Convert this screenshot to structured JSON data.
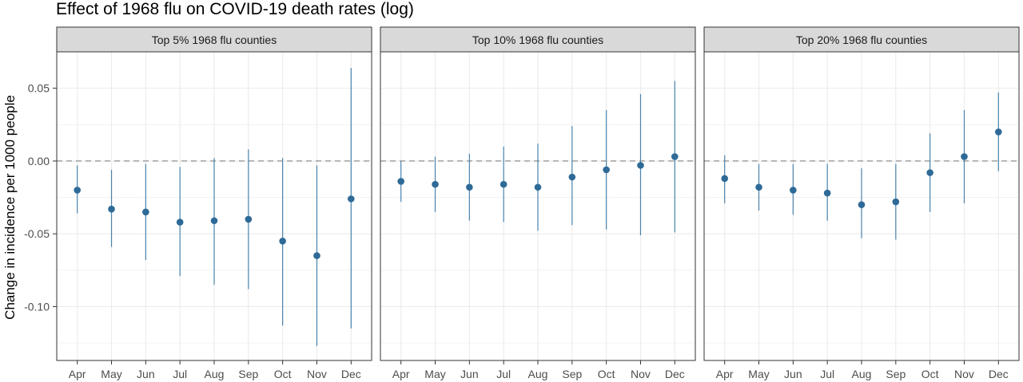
{
  "chart_data": {
    "type": "scatter",
    "title": "Effect of 1968 flu on COVID-19 death rates (log)",
    "xlabel": "",
    "ylabel": "Change in incidence per 1000 people",
    "ylim": [
      -0.137,
      0.075
    ],
    "y_ticks": [
      0.05,
      0.0,
      -0.05,
      -0.1
    ],
    "y_tick_labels": [
      "0.05",
      "0.00",
      "-0.05",
      "-0.10"
    ],
    "reference_line": 0.0,
    "grid": true,
    "error_bars": true,
    "colors": {
      "point": "#2E6A97",
      "error_bar": "#4A83AD",
      "reference_line": "#8C8C8C",
      "strip_background": "#D9D9D9",
      "grid": "#EBEBEB"
    },
    "categories": [
      "Apr",
      "May",
      "Jun",
      "Jul",
      "Aug",
      "Sep",
      "Oct",
      "Nov",
      "Dec"
    ],
    "panels": [
      {
        "name": "Top 5% 1968 flu counties",
        "values": [
          -0.02,
          -0.033,
          -0.035,
          -0.042,
          -0.041,
          -0.04,
          -0.055,
          -0.065,
          -0.026
        ],
        "lower": [
          -0.036,
          -0.059,
          -0.068,
          -0.079,
          -0.085,
          -0.088,
          -0.113,
          -0.127,
          -0.115
        ],
        "upper": [
          -0.003,
          -0.006,
          -0.002,
          -0.004,
          0.002,
          0.008,
          0.002,
          -0.003,
          0.064
        ]
      },
      {
        "name": "Top 10% 1968 flu counties",
        "values": [
          -0.014,
          -0.016,
          -0.018,
          -0.016,
          -0.018,
          -0.011,
          -0.006,
          -0.003,
          0.003
        ],
        "lower": [
          -0.028,
          -0.035,
          -0.041,
          -0.042,
          -0.048,
          -0.044,
          -0.047,
          -0.051,
          -0.049
        ],
        "upper": [
          0.0,
          0.003,
          0.005,
          0.01,
          0.012,
          0.024,
          0.035,
          0.046,
          0.055
        ]
      },
      {
        "name": "Top 20% 1968 flu counties",
        "values": [
          -0.012,
          -0.018,
          -0.02,
          -0.022,
          -0.03,
          -0.028,
          -0.008,
          0.003,
          0.02
        ],
        "lower": [
          -0.029,
          -0.034,
          -0.037,
          -0.041,
          -0.053,
          -0.054,
          -0.035,
          -0.029,
          -0.007
        ],
        "upper": [
          0.004,
          -0.002,
          -0.002,
          -0.002,
          -0.005,
          -0.002,
          0.019,
          0.035,
          0.047
        ]
      }
    ]
  }
}
